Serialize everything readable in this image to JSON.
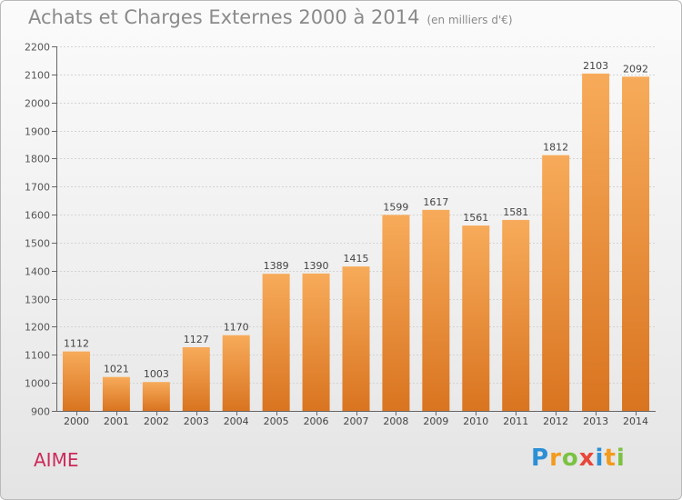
{
  "title": "Achats et Charges Externes 2000 à 2014",
  "unit": "(en milliers d'€)",
  "place_name": "AIME",
  "logo": {
    "letters": [
      "P",
      "r",
      "o",
      "x",
      "i",
      "t",
      "i"
    ],
    "colors": [
      "#2b8fd6",
      "#f29b1d",
      "#7cc242",
      "#e8463a",
      "#2b8fd6",
      "#f29b1d",
      "#7cc242"
    ]
  },
  "colors": {
    "bar_light": "#f7ab5a",
    "bar_dark": "#d97420",
    "text": "#8a8a8a"
  },
  "chart_data": {
    "type": "bar",
    "categories": [
      "2000",
      "2001",
      "2002",
      "2003",
      "2004",
      "2005",
      "2006",
      "2007",
      "2008",
      "2009",
      "2010",
      "2011",
      "2012",
      "2013",
      "2014"
    ],
    "values": [
      1112,
      1021,
      1003,
      1127,
      1170,
      1389,
      1390,
      1415,
      1599,
      1617,
      1561,
      1581,
      1812,
      2103,
      2092
    ],
    "ylim": [
      900,
      2200
    ],
    "yticks": [
      900,
      1000,
      1100,
      1200,
      1300,
      1400,
      1500,
      1600,
      1700,
      1800,
      1900,
      2000,
      2100,
      2200
    ],
    "grid": true
  }
}
